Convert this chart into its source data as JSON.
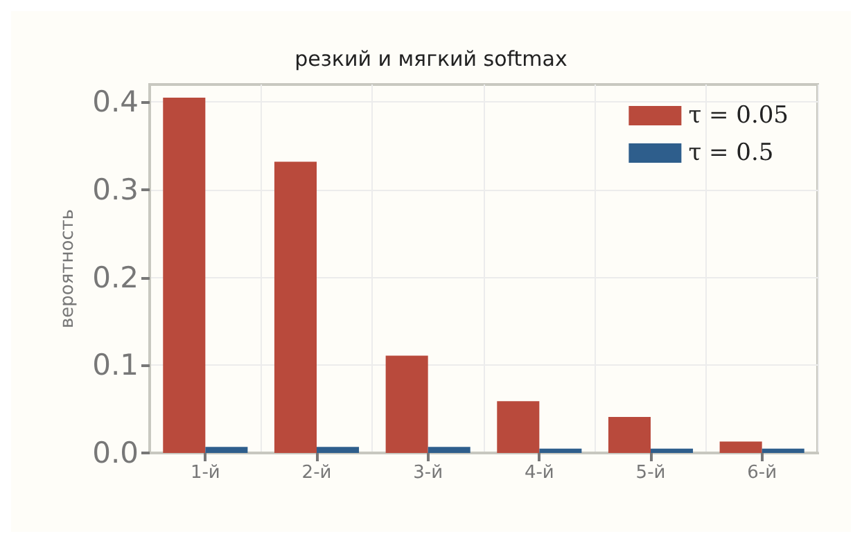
{
  "chart_data": {
    "type": "bar",
    "title": "резкий и мягкий softmax",
    "ylabel": "вероятность",
    "categories": [
      "1-й",
      "2-й",
      "3-й",
      "4-й",
      "5-й",
      "6-й"
    ],
    "series": [
      {
        "name": "τ = 0.05",
        "color": "#b94a3c",
        "values": [
          0.405,
          0.332,
          0.111,
          0.059,
          0.041,
          0.013
        ]
      },
      {
        "name": "τ = 0.5",
        "color": "#2e5e8c",
        "values": [
          0.007,
          0.007,
          0.007,
          0.005,
          0.005,
          0.005
        ]
      }
    ],
    "ylim": [
      0,
      0.42
    ],
    "yticks": [
      {
        "value": 0,
        "label": "0.0"
      },
      {
        "value": 0.1,
        "label": "0.1"
      },
      {
        "value": 0.2,
        "label": "0.2"
      },
      {
        "value": 0.3,
        "label": "0.3"
      },
      {
        "value": 0.4,
        "label": "0.4"
      }
    ],
    "grid": true,
    "legend": "top right"
  }
}
